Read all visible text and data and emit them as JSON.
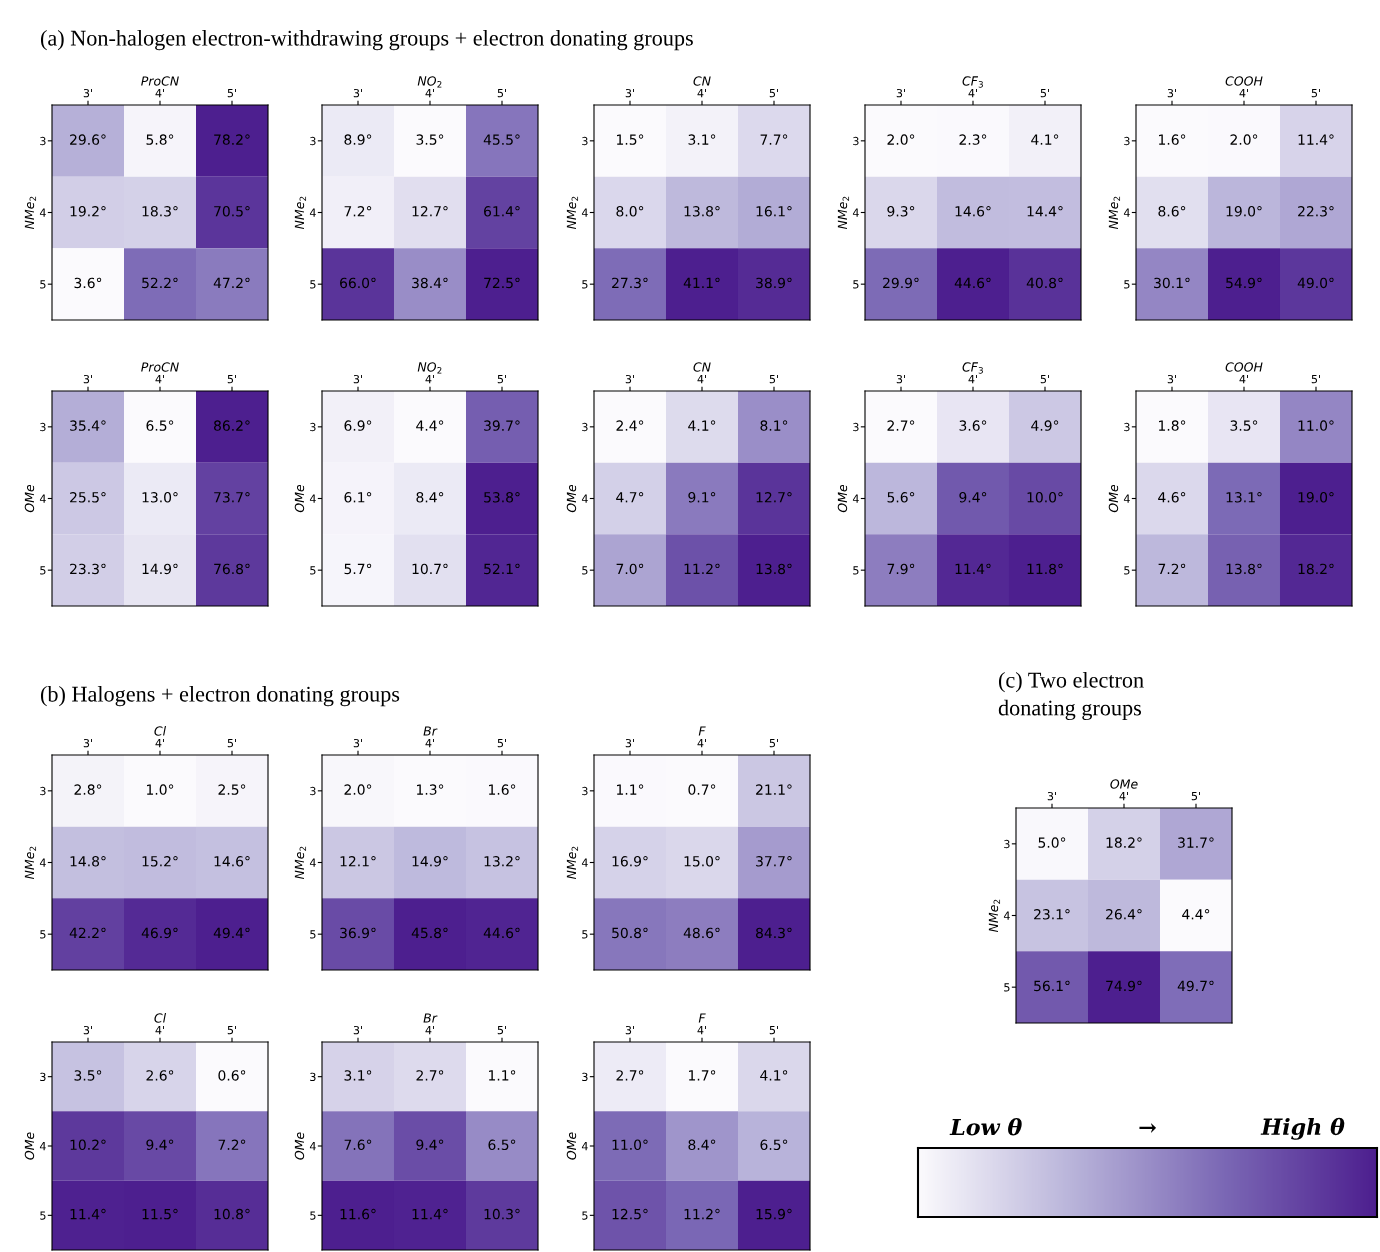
{
  "chart_data": [
    {
      "type": "heatmap",
      "annotations": [
        "(a) Non-halogen electron-withdrawing groups + electron donating groups"
      ],
      "title": "ProCN",
      "ylabel": "NMe$_{2}$",
      "categories": [
        "3'",
        "4'",
        "5'"
      ],
      "y_categories": [
        "3",
        "4",
        "5"
      ],
      "cells": [
        [
          29.6,
          5.8,
          78.2
        ],
        [
          19.2,
          18.3,
          70.5
        ],
        [
          3.6,
          52.2,
          47.2
        ]
      ],
      "cell_labels": [
        [
          "29.6°",
          "5.8°",
          "78.2°"
        ],
        [
          "19.2°",
          "18.3°",
          "70.5°"
        ],
        [
          "3.6°",
          "52.2°",
          "47.2°"
        ]
      ]
    },
    {
      "type": "heatmap",
      "title": "NO$_{2}$",
      "ylabel": "NMe$_{2}$",
      "categories": [
        "3'",
        "4'",
        "5'"
      ],
      "y_categories": [
        "3",
        "4",
        "5"
      ],
      "cells": [
        [
          8.9,
          3.5,
          45.5
        ],
        [
          7.2,
          12.7,
          61.4
        ],
        [
          66.0,
          38.4,
          72.5
        ]
      ],
      "cell_labels": [
        [
          "8.9°",
          "3.5°",
          "45.5°"
        ],
        [
          "7.2°",
          "12.7°",
          "61.4°"
        ],
        [
          "66.0°",
          "38.4°",
          "72.5°"
        ]
      ]
    },
    {
      "type": "heatmap",
      "title": "CN",
      "ylabel": "NMe$_{2}$",
      "categories": [
        "3'",
        "4'",
        "5'"
      ],
      "y_categories": [
        "3",
        "4",
        "5"
      ],
      "cells": [
        [
          1.5,
          3.1,
          7.7
        ],
        [
          8.0,
          13.8,
          16.1
        ],
        [
          27.3,
          41.1,
          38.9
        ]
      ],
      "cell_labels": [
        [
          "1.5°",
          "3.1°",
          "7.7°"
        ],
        [
          "8.0°",
          "13.8°",
          "16.1°"
        ],
        [
          "27.3°",
          "41.1°",
          "38.9°"
        ]
      ]
    },
    {
      "type": "heatmap",
      "title": "CF$_{3}$",
      "ylabel": "NMe$_{2}$",
      "categories": [
        "3'",
        "4'",
        "5'"
      ],
      "y_categories": [
        "3",
        "4",
        "5"
      ],
      "cells": [
        [
          2.0,
          2.3,
          4.1
        ],
        [
          9.3,
          14.6,
          14.4
        ],
        [
          29.9,
          44.6,
          40.8
        ]
      ],
      "cell_labels": [
        [
          "2.0°",
          "2.3°",
          "4.1°"
        ],
        [
          "9.3°",
          "14.6°",
          "14.4°"
        ],
        [
          "29.9°",
          "44.6°",
          "40.8°"
        ]
      ]
    },
    {
      "type": "heatmap",
      "title": "COOH",
      "ylabel": "NMe$_{2}$",
      "categories": [
        "3'",
        "4'",
        "5'"
      ],
      "y_categories": [
        "3",
        "4",
        "5"
      ],
      "cells": [
        [
          1.6,
          2.0,
          11.4
        ],
        [
          8.6,
          19.0,
          22.3
        ],
        [
          30.1,
          54.9,
          49.0
        ]
      ],
      "cell_labels": [
        [
          "1.6°",
          "2.0°",
          "11.4°"
        ],
        [
          "8.6°",
          "19.0°",
          "22.3°"
        ],
        [
          "30.1°",
          "54.9°",
          "49.0°"
        ]
      ]
    },
    {
      "type": "heatmap",
      "title": "ProCN",
      "ylabel": "OMe",
      "categories": [
        "3'",
        "4'",
        "5'"
      ],
      "y_categories": [
        "3",
        "4",
        "5"
      ],
      "cells": [
        [
          35.4,
          6.5,
          86.2
        ],
        [
          25.5,
          13.0,
          73.7
        ],
        [
          23.3,
          14.9,
          76.8
        ]
      ],
      "cell_labels": [
        [
          "35.4°",
          "6.5°",
          "86.2°"
        ],
        [
          "25.5°",
          "13.0°",
          "73.7°"
        ],
        [
          "23.3°",
          "14.9°",
          "76.8°"
        ]
      ]
    },
    {
      "type": "heatmap",
      "title": "NO$_{2}$",
      "ylabel": "OMe",
      "categories": [
        "3'",
        "4'",
        "5'"
      ],
      "y_categories": [
        "3",
        "4",
        "5"
      ],
      "cells": [
        [
          6.9,
          4.4,
          39.7
        ],
        [
          6.1,
          8.4,
          53.8
        ],
        [
          5.7,
          10.7,
          52.1
        ]
      ],
      "cell_labels": [
        [
          "6.9°",
          "4.4°",
          "39.7°"
        ],
        [
          "6.1°",
          "8.4°",
          "53.8°"
        ],
        [
          "5.7°",
          "10.7°",
          "52.1°"
        ]
      ]
    },
    {
      "type": "heatmap",
      "title": "CN",
      "ylabel": "OMe",
      "categories": [
        "3'",
        "4'",
        "5'"
      ],
      "y_categories": [
        "3",
        "4",
        "5"
      ],
      "cells": [
        [
          2.4,
          4.1,
          8.1
        ],
        [
          4.7,
          9.1,
          12.7
        ],
        [
          7.0,
          11.2,
          13.8
        ]
      ],
      "cell_labels": [
        [
          "2.4°",
          "4.1°",
          "8.1°"
        ],
        [
          "4.7°",
          "9.1°",
          "12.7°"
        ],
        [
          "7.0°",
          "11.2°",
          "13.8°"
        ]
      ]
    },
    {
      "type": "heatmap",
      "title": "CF$_{3}$",
      "ylabel": "OMe",
      "categories": [
        "3'",
        "4'",
        "5'"
      ],
      "y_categories": [
        "3",
        "4",
        "5"
      ],
      "cells": [
        [
          2.7,
          3.6,
          4.9
        ],
        [
          5.6,
          9.4,
          10.0
        ],
        [
          7.9,
          11.4,
          11.8
        ]
      ],
      "cell_labels": [
        [
          "2.7°",
          "3.6°",
          "4.9°"
        ],
        [
          "5.6°",
          "9.4°",
          "10.0°"
        ],
        [
          "7.9°",
          "11.4°",
          "11.8°"
        ]
      ]
    },
    {
      "type": "heatmap",
      "title": "COOH",
      "ylabel": "OMe",
      "categories": [
        "3'",
        "4'",
        "5'"
      ],
      "y_categories": [
        "3",
        "4",
        "5"
      ],
      "cells": [
        [
          1.8,
          3.5,
          11.0
        ],
        [
          4.6,
          13.1,
          19.0
        ],
        [
          7.2,
          13.8,
          18.2
        ]
      ],
      "cell_labels": [
        [
          "1.8°",
          "3.5°",
          "11.0°"
        ],
        [
          "4.6°",
          "13.1°",
          "19.0°"
        ],
        [
          "7.2°",
          "13.8°",
          "18.2°"
        ]
      ]
    },
    {
      "type": "heatmap",
      "annotations": [
        "(b) Halogens + electron donating groups"
      ],
      "title": "Cl",
      "ylabel": "NMe$_{2}$",
      "categories": [
        "3'",
        "4'",
        "5'"
      ],
      "y_categories": [
        "3",
        "4",
        "5"
      ],
      "cells": [
        [
          2.8,
          1.0,
          2.5
        ],
        [
          14.8,
          15.2,
          14.6
        ],
        [
          42.2,
          46.9,
          49.4
        ]
      ],
      "cell_labels": [
        [
          "2.8°",
          "1.0°",
          "2.5°"
        ],
        [
          "14.8°",
          "15.2°",
          "14.6°"
        ],
        [
          "42.2°",
          "46.9°",
          "49.4°"
        ]
      ]
    },
    {
      "type": "heatmap",
      "title": "Br",
      "ylabel": "NMe$_{2}$",
      "categories": [
        "3'",
        "4'",
        "5'"
      ],
      "y_categories": [
        "3",
        "4",
        "5"
      ],
      "cells": [
        [
          2.0,
          1.3,
          1.6
        ],
        [
          12.1,
          14.9,
          13.2
        ],
        [
          36.9,
          45.8,
          44.6
        ]
      ],
      "cell_labels": [
        [
          "2.0°",
          "1.3°",
          "1.6°"
        ],
        [
          "12.1°",
          "14.9°",
          "13.2°"
        ],
        [
          "36.9°",
          "45.8°",
          "44.6°"
        ]
      ]
    },
    {
      "type": "heatmap",
      "title": "F",
      "ylabel": "NMe$_{2}$",
      "categories": [
        "3'",
        "4'",
        "5'"
      ],
      "y_categories": [
        "3",
        "4",
        "5"
      ],
      "cells": [
        [
          1.1,
          0.7,
          21.1
        ],
        [
          16.9,
          15.0,
          37.7
        ],
        [
          50.8,
          48.6,
          84.3
        ]
      ],
      "cell_labels": [
        [
          "1.1°",
          "0.7°",
          "21.1°"
        ],
        [
          "16.9°",
          "15.0°",
          "37.7°"
        ],
        [
          "50.8°",
          "48.6°",
          "84.3°"
        ]
      ]
    },
    {
      "type": "heatmap",
      "title": "Cl",
      "ylabel": "OMe",
      "categories": [
        "3'",
        "4'",
        "5'"
      ],
      "y_categories": [
        "3",
        "4",
        "5"
      ],
      "cells": [
        [
          3.5,
          2.6,
          0.6
        ],
        [
          10.2,
          9.4,
          7.2
        ],
        [
          11.4,
          11.5,
          10.8
        ]
      ],
      "cell_labels": [
        [
          "3.5°",
          "2.6°",
          "0.6°"
        ],
        [
          "10.2°",
          "9.4°",
          "7.2°"
        ],
        [
          "11.4°",
          "11.5°",
          "10.8°"
        ]
      ]
    },
    {
      "type": "heatmap",
      "title": "Br",
      "ylabel": "OMe",
      "categories": [
        "3'",
        "4'",
        "5'"
      ],
      "y_categories": [
        "3",
        "4",
        "5"
      ],
      "cells": [
        [
          3.1,
          2.7,
          1.1
        ],
        [
          7.6,
          9.4,
          6.5
        ],
        [
          11.6,
          11.4,
          10.3
        ]
      ],
      "cell_labels": [
        [
          "3.1°",
          "2.7°",
          "1.1°"
        ],
        [
          "7.6°",
          "9.4°",
          "6.5°"
        ],
        [
          "11.6°",
          "11.4°",
          "10.3°"
        ]
      ]
    },
    {
      "type": "heatmap",
      "title": "F",
      "ylabel": "OMe",
      "categories": [
        "3'",
        "4'",
        "5'"
      ],
      "y_categories": [
        "3",
        "4",
        "5"
      ],
      "cells": [
        [
          2.7,
          1.7,
          4.1
        ],
        [
          11.0,
          8.4,
          6.5
        ],
        [
          12.5,
          11.2,
          15.9
        ]
      ],
      "cell_labels": [
        [
          "2.7°",
          "1.7°",
          "4.1°"
        ],
        [
          "11.0°",
          "8.4°",
          "6.5°"
        ],
        [
          "12.5°",
          "11.2°",
          "15.9°"
        ]
      ]
    },
    {
      "type": "heatmap",
      "annotations": [
        "(c) Two electron\ndonating groups"
      ],
      "title": "OMe",
      "ylabel": "NMe$_{2}$",
      "categories": [
        "3'",
        "4'",
        "5'"
      ],
      "y_categories": [
        "3",
        "4",
        "5"
      ],
      "cells": [
        [
          5.0,
          18.2,
          31.7
        ],
        [
          23.1,
          26.4,
          4.4
        ],
        [
          56.1,
          74.9,
          49.7
        ]
      ],
      "cell_labels": [
        [
          "5.0°",
          "18.2°",
          "31.7°"
        ],
        [
          "23.1°",
          "26.4°",
          "4.4°"
        ],
        [
          "56.1°",
          "74.9°",
          "49.7°"
        ]
      ]
    },
    {
      "type": "other",
      "annotations": [
        "Low θ",
        "→",
        "High θ"
      ]
    }
  ]
}
